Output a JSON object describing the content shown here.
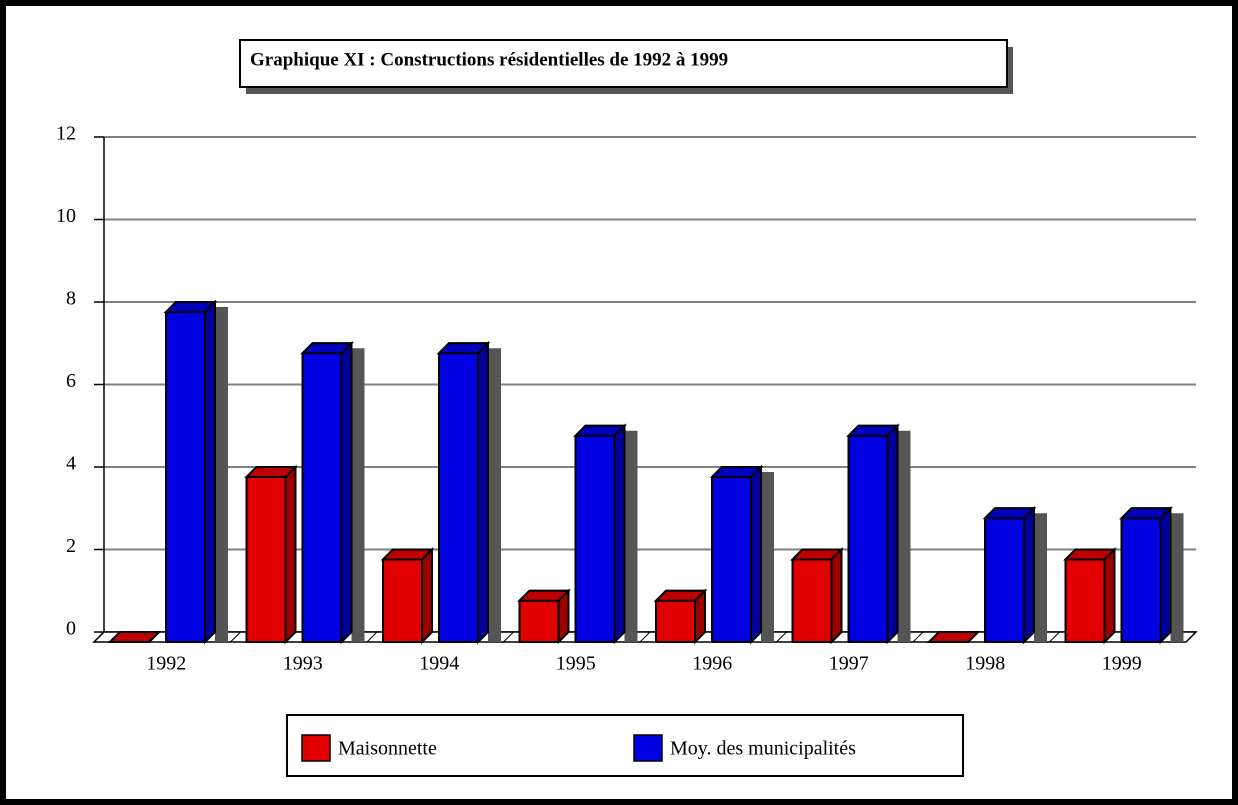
{
  "chart_data": {
    "type": "bar3d",
    "title": "Graphique XI : Constructions résidentielles de 1992 à 1999",
    "categories": [
      "1992",
      "1993",
      "1994",
      "1995",
      "1996",
      "1997",
      "1998",
      "1999"
    ],
    "series": [
      {
        "name": "Maisonnette",
        "color": "#e00000",
        "values": [
          0,
          4,
          2,
          1,
          1,
          2,
          0,
          2
        ]
      },
      {
        "name": "Moy. des municipalités",
        "color": "#0000e0",
        "values": [
          8,
          7,
          7,
          5,
          4,
          5,
          3,
          3
        ]
      }
    ],
    "ylim": [
      0,
      12
    ],
    "yticks": [
      0,
      2,
      4,
      6,
      8,
      10,
      12
    ],
    "grid": true,
    "legend": "bottom"
  }
}
